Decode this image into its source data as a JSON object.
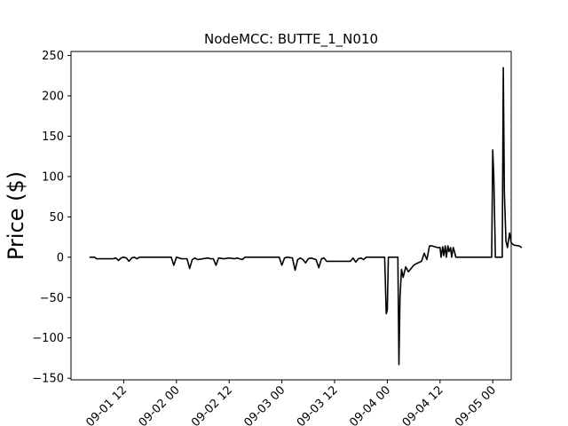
{
  "chart_data": {
    "type": "line",
    "title": "NodeMCC: BUTTE_1_N010",
    "ylabel": "Price ($)",
    "xlabel": "",
    "ylim": [
      -152,
      255
    ],
    "xlim": [
      -0.5,
      7.85
    ],
    "grid": false,
    "legend": "none",
    "y_ticks": [
      250,
      200,
      150,
      100,
      50,
      0,
      -50,
      -100,
      -150
    ],
    "x_ticks": [
      {
        "value": 0.5,
        "label": "09-01 12"
      },
      {
        "value": 1.5,
        "label": "09-02 00"
      },
      {
        "value": 2.5,
        "label": "09-02 12"
      },
      {
        "value": 3.5,
        "label": "09-03 00"
      },
      {
        "value": 4.5,
        "label": "09-03 12"
      },
      {
        "value": 5.5,
        "label": "09-04 00"
      },
      {
        "value": 6.5,
        "label": "09-04 12"
      },
      {
        "value": 7.5,
        "label": "09-05 00"
      }
    ],
    "x_axis_note": "x positions measured in half-day steps; tick labels are the printed date-hour labels",
    "series": [
      {
        "color": "#000000",
        "x": [
          -0.15,
          -0.05,
          -0.02,
          0.1,
          0.2,
          0.3,
          0.35,
          0.4,
          0.45,
          0.5,
          0.55,
          0.6,
          0.65,
          0.7,
          0.75,
          0.8,
          1.0,
          1.2,
          1.4,
          1.45,
          1.5,
          1.55,
          1.6,
          1.7,
          1.75,
          1.8,
          1.85,
          1.9,
          2.0,
          2.1,
          2.15,
          2.2,
          2.25,
          2.3,
          2.4,
          2.5,
          2.6,
          2.65,
          2.7,
          2.75,
          2.8,
          3.0,
          3.2,
          3.45,
          3.5,
          3.55,
          3.6,
          3.7,
          3.75,
          3.8,
          3.85,
          3.9,
          3.95,
          4.0,
          4.05,
          4.15,
          4.2,
          4.25,
          4.3,
          4.35,
          4.5,
          4.8,
          4.85,
          4.9,
          4.95,
          5.0,
          5.05,
          5.1,
          5.15,
          5.2,
          5.3,
          5.45,
          5.48,
          5.5,
          5.52,
          5.55,
          5.7,
          5.72,
          5.74,
          5.77,
          5.8,
          5.85,
          5.9,
          6.0,
          6.05,
          6.15,
          6.2,
          6.25,
          6.3,
          6.35,
          6.45,
          6.5,
          6.52,
          6.55,
          6.57,
          6.6,
          6.62,
          6.65,
          6.67,
          6.7,
          6.72,
          6.75,
          6.77,
          6.8,
          7.1,
          7.48,
          7.5,
          7.52,
          7.55,
          7.6,
          7.68,
          7.7,
          7.72,
          7.75,
          7.78,
          7.82,
          7.85,
          7.9,
          8.0,
          8.05
        ],
        "y": [
          0,
          0,
          -2,
          -2,
          -2,
          -2,
          -1,
          -4,
          -1,
          0,
          -1,
          -5,
          -1,
          0,
          -2,
          0,
          0,
          0,
          0,
          -10,
          0,
          -1,
          -2,
          -2,
          -14,
          -3,
          -1,
          -3,
          -2,
          -1,
          -2,
          -2,
          -10,
          -1,
          -2,
          -1,
          -2,
          -1,
          -2,
          -3,
          0,
          0,
          0,
          0,
          -10,
          -1,
          0,
          -1,
          -16,
          -3,
          -1,
          -3,
          -7,
          -2,
          -1,
          -3,
          -13,
          -2,
          -1,
          -5,
          -5,
          -5,
          -1,
          -6,
          -2,
          -1,
          -3,
          0,
          0,
          0,
          0,
          0,
          -70,
          -65,
          0,
          0,
          0,
          -133,
          -50,
          -15,
          -25,
          -12,
          -18,
          -10,
          -8,
          -5,
          5,
          -3,
          14,
          14,
          12,
          12,
          0,
          13,
          2,
          14,
          0,
          14,
          7,
          12,
          0,
          12,
          8,
          0,
          0,
          0,
          133,
          100,
          0,
          0,
          0,
          235,
          80,
          20,
          12,
          30,
          18,
          15,
          14,
          12
        ]
      }
    ]
  }
}
